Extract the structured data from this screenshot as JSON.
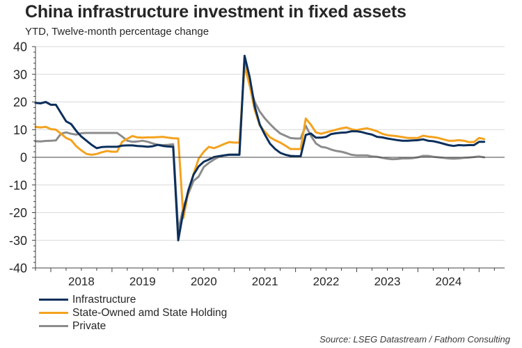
{
  "title": "China infrastructure investment in fixed assets",
  "subtitle": "YTD, Twelve-month percentage change",
  "source": "Source: LSEG Datastream / Fathom Consulting",
  "chart_data": {
    "type": "line",
    "title": "China infrastructure investment in fixed assets",
    "subtitle": "YTD, Twelve-month percentage change",
    "xlabel": "",
    "ylabel": "",
    "ylim": [
      -40,
      40
    ],
    "yticks": [
      40,
      30,
      20,
      10,
      0,
      -10,
      -20,
      -30,
      -40
    ],
    "xlim": [
      "2017-10",
      "2025-06"
    ],
    "xticks": [
      "2018",
      "2019",
      "2020",
      "2021",
      "2022",
      "2023",
      "2024"
    ],
    "grid": true,
    "legend_position": "bottom-left",
    "x_start": "2017-10",
    "x_frequency": "monthly",
    "series": [
      {
        "name": "Infrastructure",
        "color": "#0b2f5b",
        "values": [
          19.7,
          19.5,
          20.0,
          19.0,
          19.0,
          16.0,
          13.0,
          12.0,
          9.5,
          7.5,
          6.0,
          4.5,
          3.3,
          3.7,
          3.8,
          3.8,
          3.8,
          4.2,
          4.3,
          4.3,
          4.1,
          4.0,
          3.8,
          4.0,
          4.5,
          4.1,
          3.9,
          3.8,
          -30.0,
          -19.5,
          -11.8,
          -6.3,
          -3.3,
          -1.6,
          -0.8,
          0.1,
          0.4,
          0.7,
          0.9,
          0.9,
          0.9,
          36.7,
          29.0,
          18.4,
          11.8,
          8.1,
          4.9,
          3.0,
          1.6,
          0.9,
          0.5,
          0.4,
          0.4,
          8.1,
          8.6,
          7.1,
          7.1,
          7.4,
          8.4,
          8.7,
          8.9,
          9.0,
          9.4,
          9.4,
          9.1,
          8.6,
          8.2,
          7.4,
          7.2,
          6.8,
          6.5,
          6.2,
          6.0,
          6.0,
          6.1,
          6.2,
          6.5,
          6.0,
          5.8,
          5.4,
          4.9,
          4.4,
          4.1,
          4.4,
          4.3,
          4.4,
          4.4,
          5.6,
          5.6
        ]
      },
      {
        "name": "State-Owned amd State Holding",
        "color": "#f4a21e",
        "values": [
          11.0,
          10.8,
          11.0,
          10.2,
          10.0,
          8.5,
          7.0,
          6.2,
          4.0,
          2.5,
          1.2,
          0.9,
          1.2,
          1.8,
          2.3,
          2.0,
          2.0,
          5.6,
          6.7,
          7.7,
          7.2,
          7.1,
          7.2,
          7.2,
          7.3,
          7.4,
          7.1,
          6.9,
          6.8,
          -22.0,
          -12.2,
          -6.0,
          -0.5,
          2.0,
          3.8,
          3.3,
          4.0,
          4.8,
          5.5,
          5.3,
          5.3,
          33.0,
          26.0,
          17.0,
          11.5,
          9.2,
          7.2,
          6.2,
          5.3,
          4.2,
          3.0,
          3.0,
          3.0,
          14.0,
          11.8,
          9.0,
          8.5,
          9.0,
          9.5,
          10.0,
          10.5,
          10.8,
          10.1,
          9.8,
          10.2,
          10.5,
          10.0,
          9.4,
          8.5,
          8.0,
          7.8,
          7.6,
          7.3,
          7.0,
          7.0,
          7.0,
          7.8,
          7.5,
          7.3,
          7.0,
          6.5,
          6.0,
          6.0,
          6.2,
          6.0,
          5.5,
          5.5,
          7.0,
          6.6
        ]
      },
      {
        "name": "Private",
        "color": "#8c8c8c",
        "values": [
          5.8,
          5.7,
          5.9,
          6.0,
          6.1,
          8.5,
          9.0,
          8.5,
          8.2,
          8.7,
          8.8,
          8.8,
          8.8,
          8.8,
          8.8,
          8.8,
          8.8,
          7.5,
          6.0,
          5.6,
          5.7,
          6.0,
          5.6,
          5.0,
          4.5,
          4.4,
          4.5,
          4.7,
          -26.5,
          -18.0,
          -13.0,
          -8.5,
          -7.0,
          -3.5,
          -2.0,
          -0.8,
          0.2,
          0.7,
          1.0,
          1.0,
          1.0,
          36.0,
          26.0,
          20.0,
          16.5,
          14.0,
          12.0,
          10.2,
          8.6,
          7.8,
          7.0,
          6.8,
          6.8,
          11.4,
          7.8,
          5.0,
          3.8,
          3.5,
          2.8,
          2.3,
          2.0,
          1.5,
          0.9,
          0.7,
          0.7,
          0.7,
          0.3,
          0.2,
          -0.2,
          -0.5,
          -0.7,
          -0.6,
          -0.4,
          -0.4,
          -0.3,
          0.0,
          0.5,
          0.5,
          0.2,
          0.0,
          -0.2,
          -0.4,
          -0.5,
          -0.4,
          -0.2,
          -0.1,
          0.1,
          0.3,
          0.0
        ]
      }
    ]
  }
}
